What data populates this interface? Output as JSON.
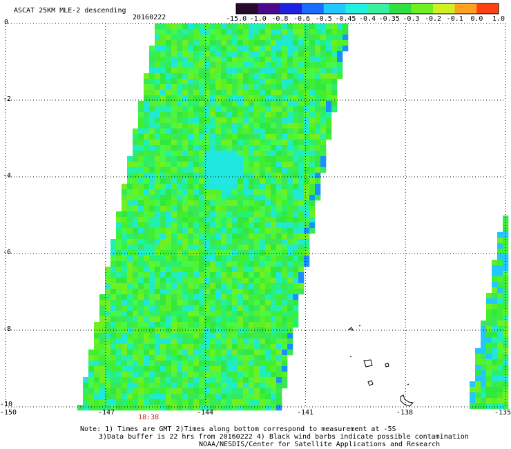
{
  "header": {
    "title": "ASCAT 25KM MLE-2 descending",
    "date": "20160222"
  },
  "colorbar": {
    "labels": [
      "-15.0",
      "-1.0",
      "-0.8",
      "-0.6",
      "-0.5",
      "-0.45",
      "-0.4",
      "-0.35",
      "-0.3",
      "-0.2",
      "-0.1",
      "0.0",
      "1.0"
    ],
    "colors": [
      "#2a0a2a",
      "#4b0a8c",
      "#2020e0",
      "#1a6cff",
      "#20c8ff",
      "#20f0e0",
      "#38f0a0",
      "#30e040",
      "#70f020",
      "#d0f020",
      "#ffa020",
      "#ff4010"
    ]
  },
  "map": {
    "lon_range": [
      -150,
      -135
    ],
    "lat_range": [
      -10,
      0
    ],
    "x_ticks": [
      "-150",
      "-147",
      "-144",
      "-141",
      "-138",
      "-135"
    ],
    "y_ticks": [
      "0",
      "-2",
      "-4",
      "-6",
      "-8",
      "-10"
    ],
    "time_label": "18:38"
  },
  "notes": {
    "line1": "Note: 1) Times are GMT 2)Times along bottom correspond to measurement at -5S",
    "line2": "3)Data buffer is 22 hrs from 20160222 4) Black wind barbs indicate possible contamination",
    "line3": "NOAA/NESDIS/Center for Satellite Applications and Research"
  }
}
